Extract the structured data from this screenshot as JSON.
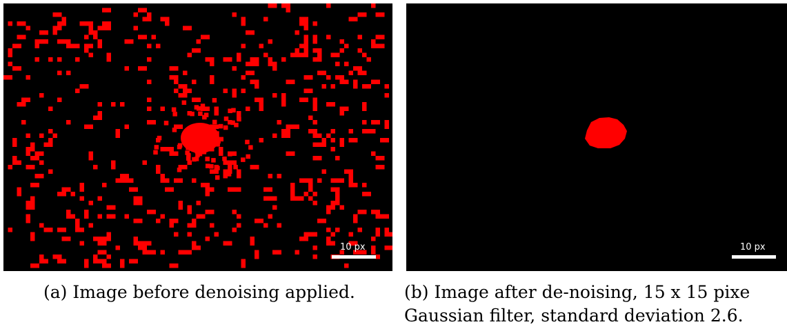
{
  "panels": [
    {
      "id": "a",
      "description_key": "noisy",
      "scale_bar_label": "10 px",
      "caption": "(a) Image before denoising applied."
    },
    {
      "id": "b",
      "description_key": "denoised",
      "scale_bar_label": "10 px",
      "caption_line1": "(b) Image after de-noising, 15 x 15 pixe",
      "caption_line2": "Gaussian filter, standard deviation 2.6."
    }
  ],
  "colors": {
    "background": "#000000",
    "signal": "#ff0000",
    "scale_bar": "#ffffff"
  }
}
